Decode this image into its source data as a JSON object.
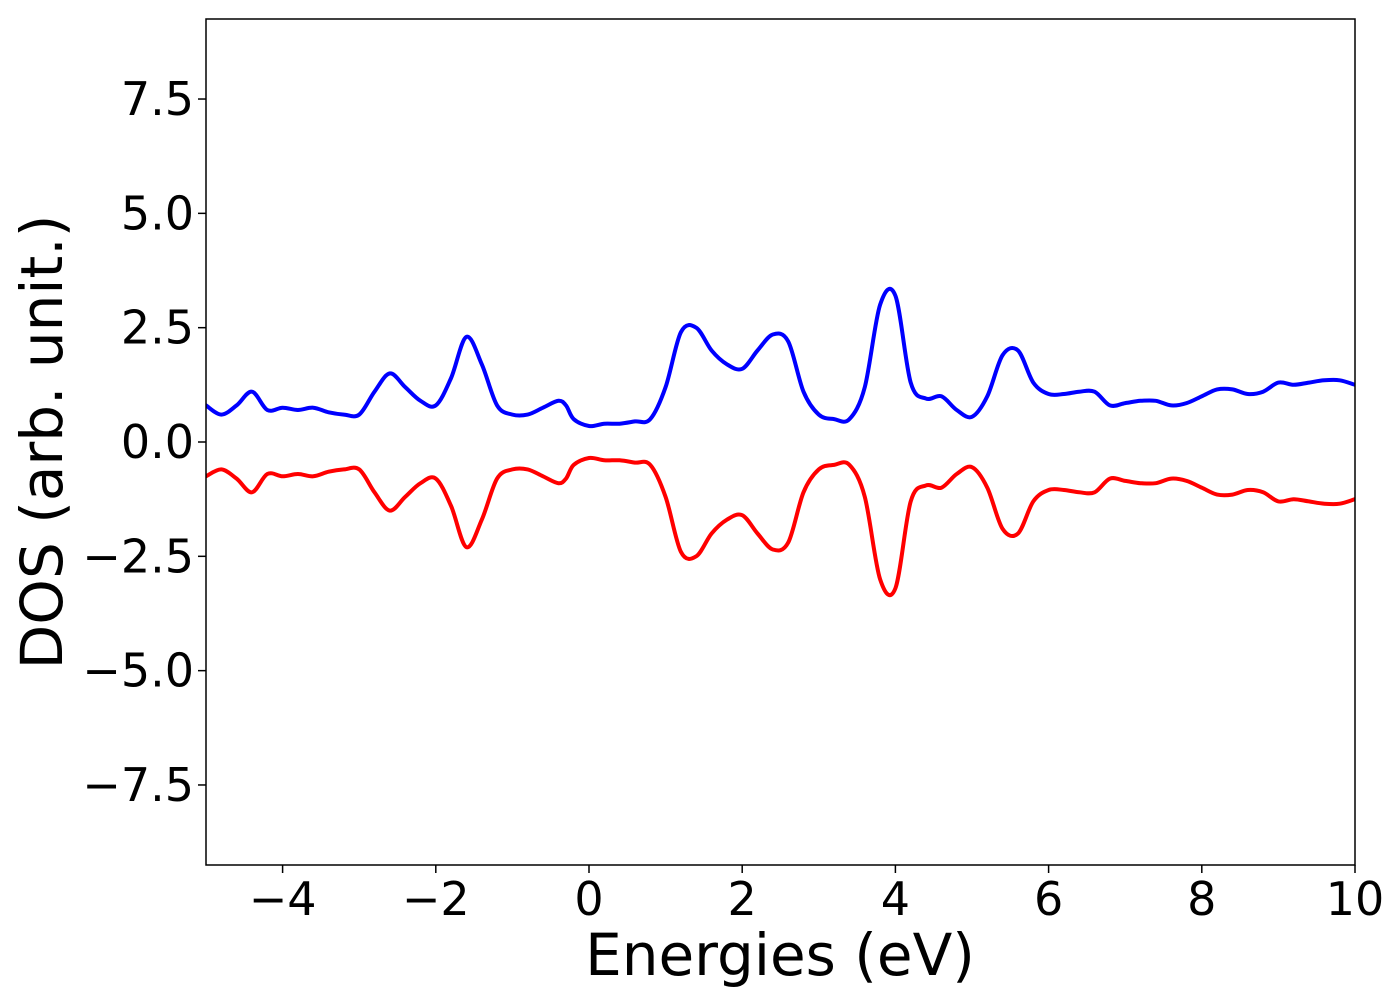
{
  "chart_data": {
    "type": "line",
    "title": "",
    "xlabel": "Energies (eV)",
    "ylabel": "DOS (arb. unit.)",
    "xlim": [
      -5,
      10
    ],
    "ylim": [
      -9.25,
      9.25
    ],
    "xticks": [
      -4,
      -2,
      0,
      2,
      4,
      6,
      8,
      10
    ],
    "xtick_labels": [
      "−4",
      "−2",
      "0",
      "2",
      "4",
      "6",
      "8",
      "10"
    ],
    "yticks": [
      7.5,
      5.0,
      2.5,
      0.0,
      -2.5,
      -5.0,
      -7.5
    ],
    "ytick_labels": [
      "7.5",
      "5.0",
      "2.5",
      "0.0",
      "−2.5",
      "−5.0",
      "−7.5"
    ],
    "grid": false,
    "legend": "none",
    "series": [
      {
        "color": "#0000ff",
        "x": [
          -5.0,
          -4.8,
          -4.6,
          -4.4,
          -4.2,
          -4.0,
          -3.8,
          -3.6,
          -3.4,
          -3.2,
          -3.0,
          -2.8,
          -2.6,
          -2.4,
          -2.2,
          -2.0,
          -1.8,
          -1.6,
          -1.4,
          -1.2,
          -1.0,
          -0.8,
          -0.6,
          -0.4,
          -0.3,
          -0.2,
          0.0,
          0.2,
          0.4,
          0.6,
          0.8,
          1.0,
          1.2,
          1.4,
          1.6,
          1.8,
          2.0,
          2.2,
          2.4,
          2.6,
          2.8,
          3.0,
          3.2,
          3.4,
          3.6,
          3.8,
          4.0,
          4.2,
          4.4,
          4.6,
          4.8,
          5.0,
          5.2,
          5.4,
          5.6,
          5.8,
          6.0,
          6.2,
          6.4,
          6.6,
          6.8,
          7.0,
          7.2,
          7.4,
          7.6,
          7.8,
          8.0,
          8.2,
          8.4,
          8.6,
          8.8,
          9.0,
          9.2,
          9.4,
          9.6,
          9.8,
          10.0
        ],
        "values": [
          0.8,
          0.6,
          0.8,
          1.1,
          0.7,
          0.75,
          0.7,
          0.75,
          0.65,
          0.6,
          0.6,
          1.1,
          1.5,
          1.2,
          0.9,
          0.8,
          1.4,
          2.3,
          1.7,
          0.8,
          0.6,
          0.6,
          0.75,
          0.9,
          0.8,
          0.5,
          0.35,
          0.4,
          0.4,
          0.45,
          0.5,
          1.2,
          2.4,
          2.5,
          2.0,
          1.7,
          1.6,
          2.0,
          2.35,
          2.2,
          1.1,
          0.6,
          0.5,
          0.5,
          1.2,
          3.0,
          3.2,
          1.3,
          0.95,
          1.0,
          0.7,
          0.55,
          1.0,
          1.9,
          2.0,
          1.3,
          1.05,
          1.05,
          1.1,
          1.1,
          0.8,
          0.85,
          0.9,
          0.9,
          0.8,
          0.85,
          1.0,
          1.15,
          1.15,
          1.05,
          1.1,
          1.3,
          1.25,
          1.3,
          1.35,
          1.35,
          1.25
        ]
      },
      {
        "color": "#ff0000",
        "x": [
          -5.0,
          -4.8,
          -4.6,
          -4.4,
          -4.2,
          -4.0,
          -3.8,
          -3.6,
          -3.4,
          -3.2,
          -3.0,
          -2.8,
          -2.6,
          -2.4,
          -2.2,
          -2.0,
          -1.8,
          -1.6,
          -1.4,
          -1.2,
          -1.0,
          -0.8,
          -0.6,
          -0.4,
          -0.3,
          -0.2,
          0.0,
          0.2,
          0.4,
          0.6,
          0.8,
          1.0,
          1.2,
          1.4,
          1.6,
          1.8,
          2.0,
          2.2,
          2.4,
          2.6,
          2.8,
          3.0,
          3.2,
          3.4,
          3.6,
          3.8,
          4.0,
          4.2,
          4.4,
          4.6,
          4.8,
          5.0,
          5.2,
          5.4,
          5.6,
          5.8,
          6.0,
          6.2,
          6.4,
          6.6,
          6.8,
          7.0,
          7.2,
          7.4,
          7.6,
          7.8,
          8.0,
          8.2,
          8.4,
          8.6,
          8.8,
          9.0,
          9.2,
          9.4,
          9.6,
          9.8,
          10.0
        ],
        "values": [
          -0.75,
          -0.6,
          -0.8,
          -1.1,
          -0.7,
          -0.75,
          -0.7,
          -0.75,
          -0.65,
          -0.6,
          -0.6,
          -1.1,
          -1.5,
          -1.2,
          -0.9,
          -0.8,
          -1.4,
          -2.3,
          -1.7,
          -0.8,
          -0.6,
          -0.6,
          -0.75,
          -0.9,
          -0.8,
          -0.5,
          -0.35,
          -0.4,
          -0.4,
          -0.45,
          -0.5,
          -1.2,
          -2.4,
          -2.5,
          -2.0,
          -1.7,
          -1.6,
          -2.0,
          -2.35,
          -2.2,
          -1.1,
          -0.6,
          -0.5,
          -0.5,
          -1.2,
          -3.0,
          -3.2,
          -1.3,
          -0.95,
          -1.0,
          -0.7,
          -0.55,
          -1.0,
          -1.9,
          -2.0,
          -1.3,
          -1.05,
          -1.05,
          -1.1,
          -1.1,
          -0.8,
          -0.85,
          -0.9,
          -0.9,
          -0.8,
          -0.85,
          -1.0,
          -1.15,
          -1.15,
          -1.05,
          -1.1,
          -1.3,
          -1.25,
          -1.3,
          -1.35,
          -1.35,
          -1.25
        ]
      }
    ]
  }
}
